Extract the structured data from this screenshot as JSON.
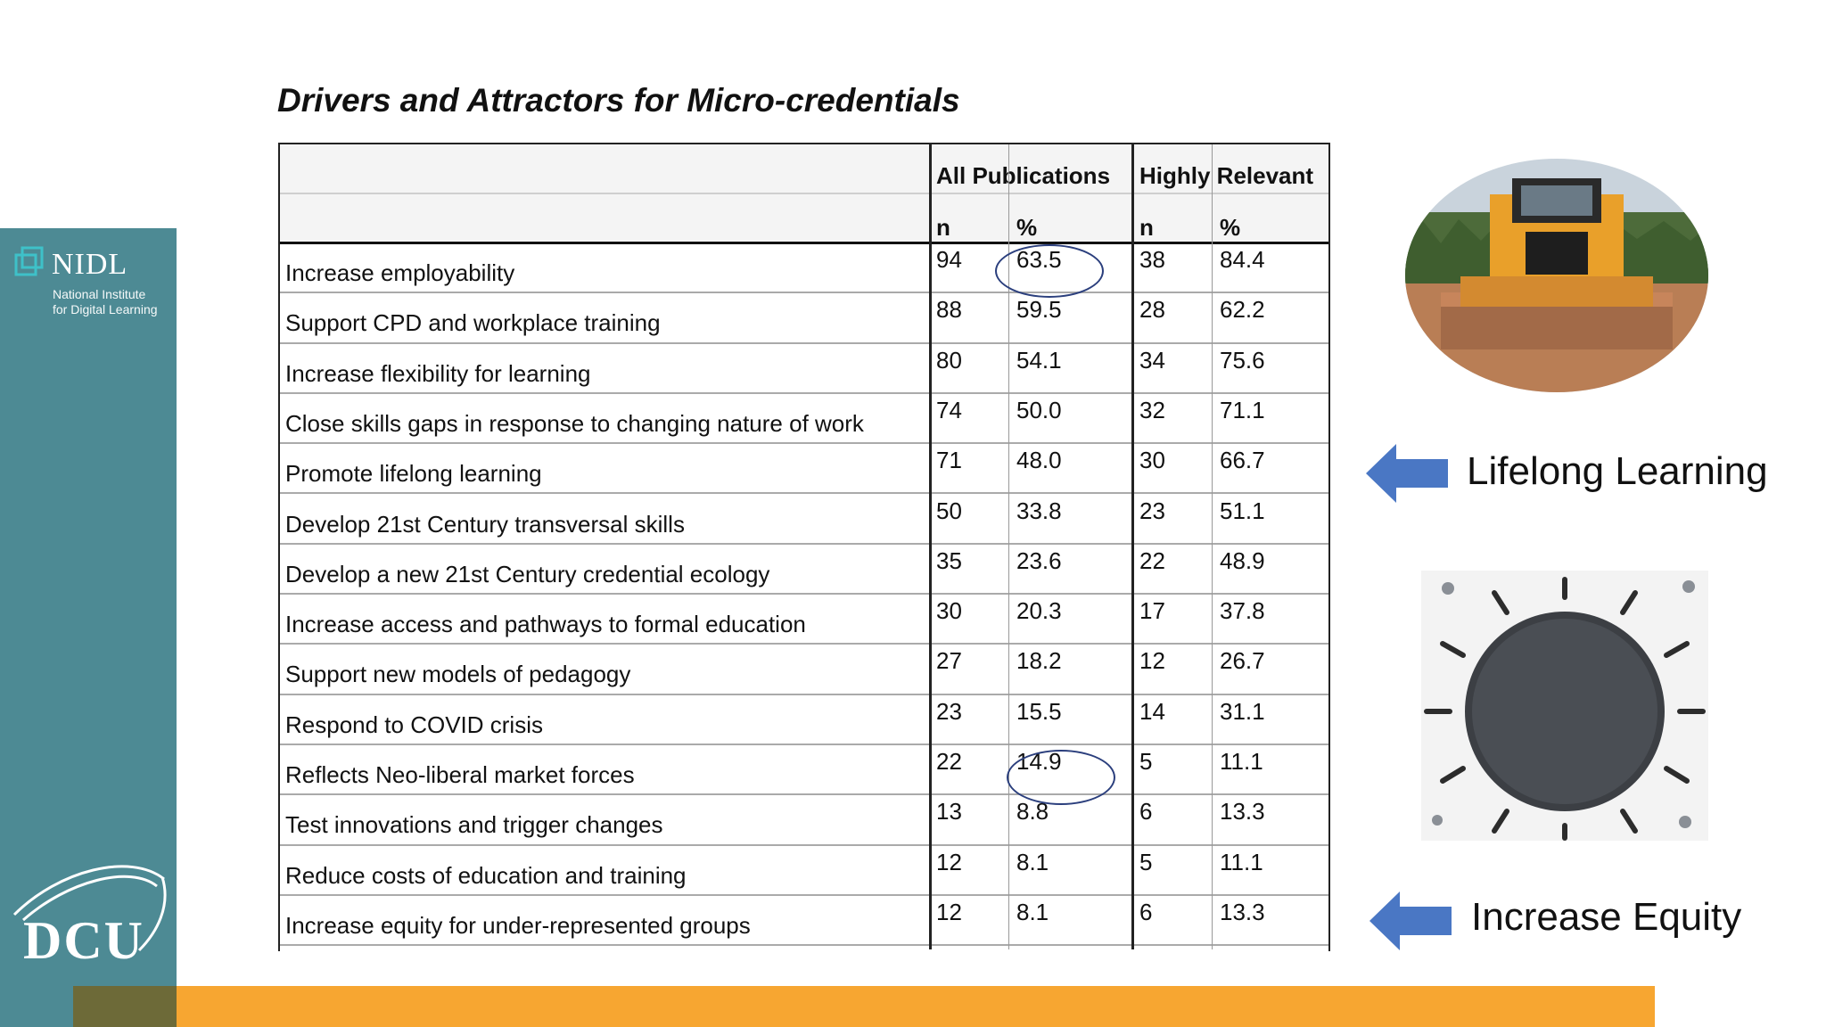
{
  "branding": {
    "nidl_name": "NIDL",
    "nidl_subtitle_line1": "National Institute",
    "nidl_subtitle_line2": "for Digital Learning",
    "university_logo_text": "DCU"
  },
  "slide": {
    "title": "Drivers and Attractors for Micro-credentials",
    "callout_lifelong": "Lifelong Learning",
    "callout_equity": "Increase Equity"
  },
  "table": {
    "group_headers": [
      "All Publications",
      "Highly Relevant"
    ],
    "sub_headers": [
      "n",
      "%",
      "n",
      "%"
    ],
    "rows": [
      {
        "label": "Increase employability",
        "all_n": "94",
        "all_pct": "63.5",
        "hr_n": "38",
        "hr_pct": "84.4"
      },
      {
        "label": "Support CPD and workplace training",
        "all_n": "88",
        "all_pct": "59.5",
        "hr_n": "28",
        "hr_pct": "62.2"
      },
      {
        "label": "Increase flexibility for learning",
        "all_n": "80",
        "all_pct": "54.1",
        "hr_n": "34",
        "hr_pct": "75.6"
      },
      {
        "label": "Close skills gaps in response to changing nature of work",
        "all_n": "74",
        "all_pct": "50.0",
        "hr_n": "32",
        "hr_pct": "71.1"
      },
      {
        "label": "Promote lifelong learning",
        "all_n": "71",
        "all_pct": "48.0",
        "hr_n": "30",
        "hr_pct": "66.7"
      },
      {
        "label": "Develop 21st Century transversal skills",
        "all_n": "50",
        "all_pct": "33.8",
        "hr_n": "23",
        "hr_pct": "51.1"
      },
      {
        "label": "Develop a new 21st Century credential ecology",
        "all_n": "35",
        "all_pct": "23.6",
        "hr_n": "22",
        "hr_pct": "48.9"
      },
      {
        "label": "Increase access and pathways to formal education",
        "all_n": "30",
        "all_pct": "20.3",
        "hr_n": "17",
        "hr_pct": "37.8"
      },
      {
        "label": "Support new models of pedagogy",
        "all_n": "27",
        "all_pct": "18.2",
        "hr_n": "12",
        "hr_pct": "26.7"
      },
      {
        "label": "Respond to COVID crisis",
        "all_n": "23",
        "all_pct": "15.5",
        "hr_n": "14",
        "hr_pct": "31.1"
      },
      {
        "label": "Reflects Neo-liberal market forces",
        "all_n": "22",
        "all_pct": "14.9",
        "hr_n": "5",
        "hr_pct": "11.1"
      },
      {
        "label": "Test innovations and trigger changes",
        "all_n": "13",
        "all_pct": "8.8",
        "hr_n": "6",
        "hr_pct": "13.3"
      },
      {
        "label": "Reduce costs of education and training",
        "all_n": "12",
        "all_pct": "8.1",
        "hr_n": "5",
        "hr_pct": "11.1"
      },
      {
        "label": "Increase equity for under-represented groups",
        "all_n": "12",
        "all_pct": "8.1",
        "hr_n": "6",
        "hr_pct": "13.3"
      }
    ]
  },
  "colors": {
    "sidebar": "#4d8a94",
    "band": "#f7a631",
    "arrow": "#4a77c4",
    "circle": "#2b3f7d"
  },
  "icons": [
    "nidl-logo-icon",
    "dcu-logo-icon",
    "left-arrow-icon"
  ]
}
